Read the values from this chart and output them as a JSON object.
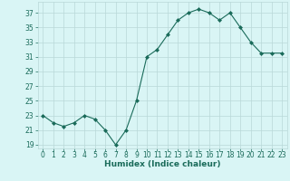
{
  "x": [
    0,
    1,
    2,
    3,
    4,
    5,
    6,
    7,
    8,
    9,
    10,
    11,
    12,
    13,
    14,
    15,
    16,
    17,
    18,
    19,
    20,
    21,
    22,
    23
  ],
  "y": [
    23,
    22,
    21.5,
    22,
    23,
    22.5,
    21,
    19,
    21,
    25,
    31,
    32,
    34,
    36,
    37,
    37.5,
    37,
    36,
    37,
    35,
    33,
    31.5,
    31.5,
    31.5
  ],
  "line_color": "#1a6b5a",
  "marker": "D",
  "marker_size": 2,
  "bg_color": "#d9f5f5",
  "grid_color": "#b8d8d8",
  "xlabel": "Humidex (Indice chaleur)",
  "yticks": [
    19,
    21,
    23,
    25,
    27,
    29,
    31,
    33,
    35,
    37
  ],
  "xticks": [
    0,
    1,
    2,
    3,
    4,
    5,
    6,
    7,
    8,
    9,
    10,
    11,
    12,
    13,
    14,
    15,
    16,
    17,
    18,
    19,
    20,
    21,
    22,
    23
  ],
  "ylim": [
    18.5,
    38.5
  ],
  "xlim": [
    -0.5,
    23.5
  ],
  "label_fontsize": 6.5,
  "tick_fontsize": 5.5
}
